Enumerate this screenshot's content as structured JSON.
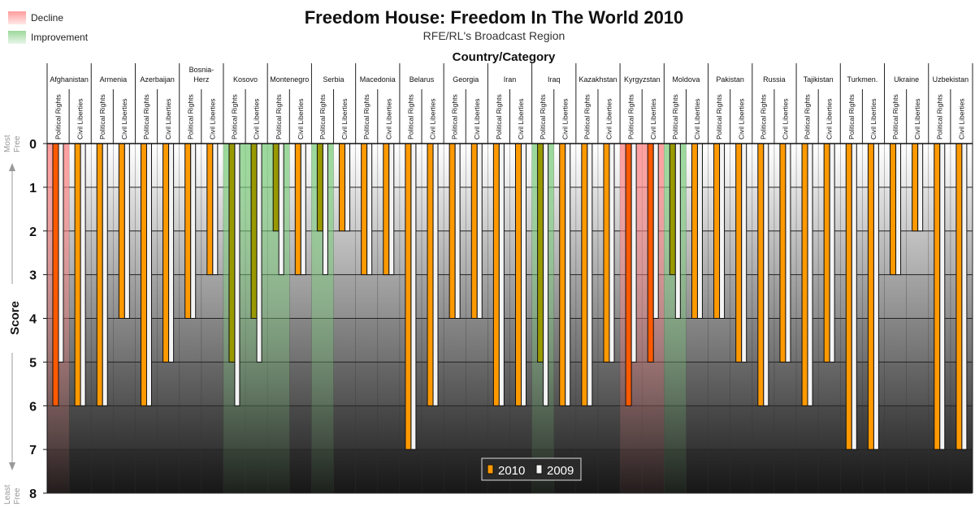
{
  "title": "Freedom House: Freedom In The World 2010",
  "subtitle": "RFE/RL's Broadcast Region",
  "highlight_legend": [
    {
      "label": "Decline",
      "color": "#ff9c9c"
    },
    {
      "label": "Improvement",
      "color": "#9cd89c"
    }
  ],
  "chart_data": {
    "type": "bar",
    "title": "Freedom House: Freedom In The World 2010",
    "subtitle": "RFE/RL's Broadcast Region",
    "xlabel": "Country/Category",
    "ylabel": "Score",
    "y_top_note": "Most Free",
    "y_bottom_note": "Least Free",
    "ylim": [
      0,
      8
    ],
    "y_inverted": true,
    "yticks": [
      "0",
      "1",
      "2",
      "3",
      "4",
      "5",
      "6",
      "7",
      "8"
    ],
    "grid": true,
    "legend_position": "bottom-center",
    "categories": [
      "Afghanistan",
      "Armenia",
      "Azerbaijan",
      "Bosnia-Herz",
      "Kosovo",
      "Montenegro",
      "Serbia",
      "Macedonia",
      "Belarus",
      "Georgia",
      "Iran",
      "Iraq",
      "Kazakhstan",
      "Kyrgyzstan",
      "Moldova",
      "Pakistan",
      "Russia",
      "Tajikistan",
      "Turkmen.",
      "Ukraine",
      "Uzbekistan"
    ],
    "subcategories": [
      "Political Rights",
      "Civil Liberties"
    ],
    "series": [
      {
        "name": "2010",
        "color": "#ff9900",
        "values": [
          [
            6,
            6
          ],
          [
            6,
            4
          ],
          [
            6,
            5
          ],
          [
            4,
            3
          ],
          [
            5,
            4
          ],
          [
            2,
            3
          ],
          [
            2,
            2
          ],
          [
            3,
            3
          ],
          [
            7,
            6
          ],
          [
            4,
            4
          ],
          [
            6,
            6
          ],
          [
            5,
            6
          ],
          [
            6,
            5
          ],
          [
            6,
            5
          ],
          [
            3,
            4
          ],
          [
            4,
            5
          ],
          [
            6,
            5
          ],
          [
            6,
            5
          ],
          [
            7,
            7
          ],
          [
            3,
            2
          ],
          [
            7,
            7
          ]
        ]
      },
      {
        "name": "2009",
        "color": "#f4f4f4",
        "values": [
          [
            5,
            6
          ],
          [
            6,
            4
          ],
          [
            6,
            5
          ],
          [
            4,
            3
          ],
          [
            6,
            5
          ],
          [
            3,
            3
          ],
          [
            3,
            2
          ],
          [
            3,
            3
          ],
          [
            7,
            6
          ],
          [
            4,
            4
          ],
          [
            6,
            6
          ],
          [
            6,
            6
          ],
          [
            6,
            5
          ],
          [
            5,
            4
          ],
          [
            4,
            4
          ],
          [
            4,
            5
          ],
          [
            6,
            5
          ],
          [
            6,
            5
          ],
          [
            7,
            7
          ],
          [
            3,
            2
          ],
          [
            7,
            7
          ]
        ]
      }
    ],
    "decline_bar_color": "#ff5a00",
    "improvement_bar_color": "#999900"
  }
}
